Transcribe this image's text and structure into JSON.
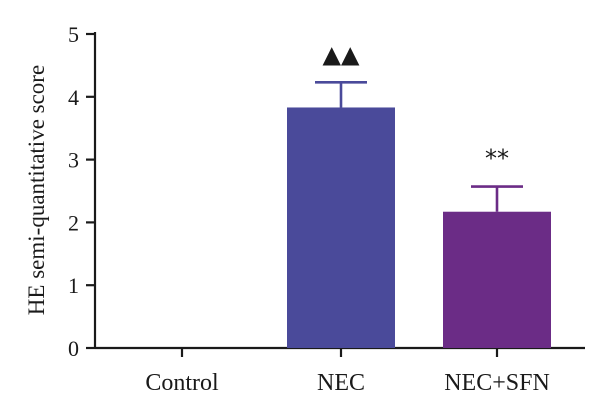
{
  "chart_data": {
    "type": "bar",
    "categories": [
      "Control",
      "NEC",
      "NEC+SFN"
    ],
    "values": [
      0,
      3.83,
      2.17
    ],
    "errors": [
      0,
      0.4,
      0.4
    ],
    "significance": [
      "",
      "▲▲",
      "**"
    ],
    "ylabel": "HE semi-quantitative score",
    "xlabel": "",
    "ylim": [
      0,
      5
    ],
    "yticks": [
      0,
      1,
      2,
      3,
      4,
      5
    ],
    "grid": false,
    "bar_colors": [
      "#4a4a9a",
      "#4a4a9a",
      "#6b2c86"
    ]
  }
}
